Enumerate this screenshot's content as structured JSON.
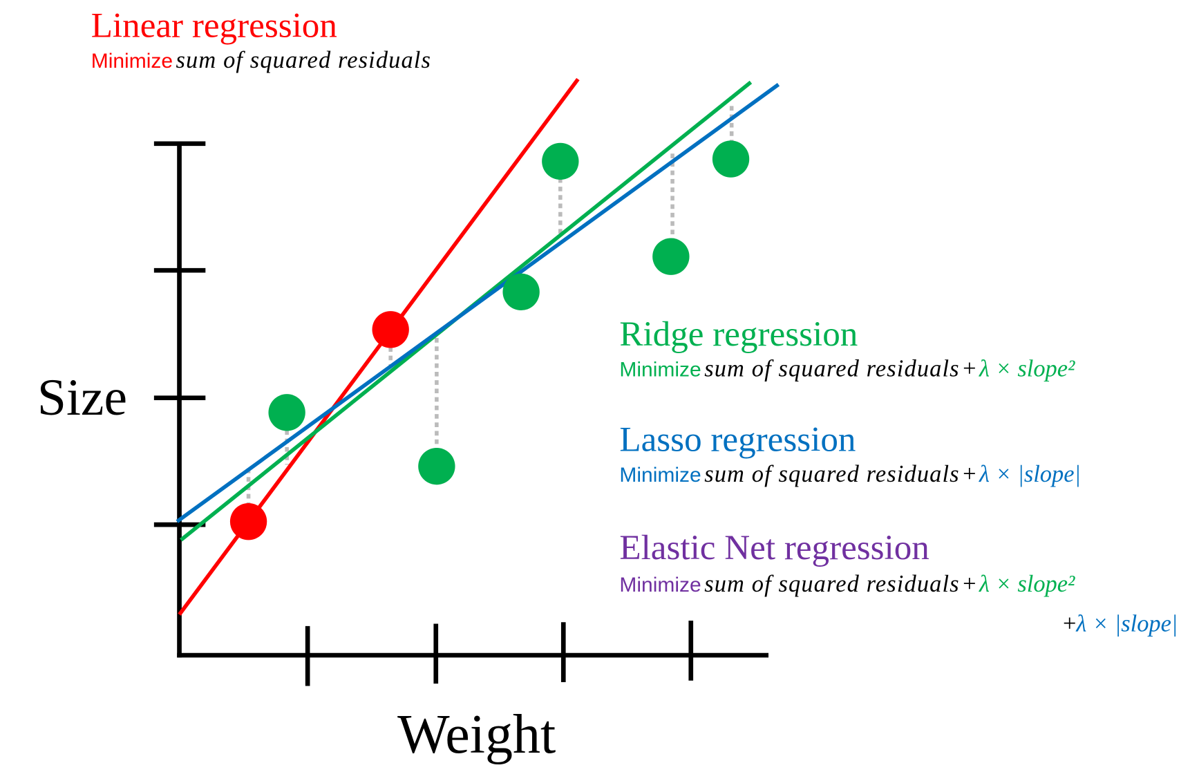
{
  "axes": {
    "y_label": "Size",
    "x_label": "Weight"
  },
  "methods": [
    {
      "name": "Linear regression",
      "minimize": "Minimize",
      "objective": "sum of squared residuals",
      "penalties": []
    },
    {
      "name": "Ridge regression",
      "minimize": "Minimize",
      "objective": "sum of squared residuals",
      "penalties": [
        {
          "op": "+",
          "term": "λ × slope²"
        }
      ]
    },
    {
      "name": "Lasso regression",
      "minimize": "Minimize",
      "objective": "sum of squared residuals",
      "penalties": [
        {
          "op": "+",
          "term": "λ × |slope|"
        }
      ]
    },
    {
      "name": "Elastic Net regression",
      "minimize": "Minimize",
      "objective": "sum of squared residuals",
      "penalties": [
        {
          "op": "+",
          "term": "λ × slope²"
        },
        {
          "op": "+",
          "term": "λ × |slope|"
        }
      ]
    }
  ]
}
